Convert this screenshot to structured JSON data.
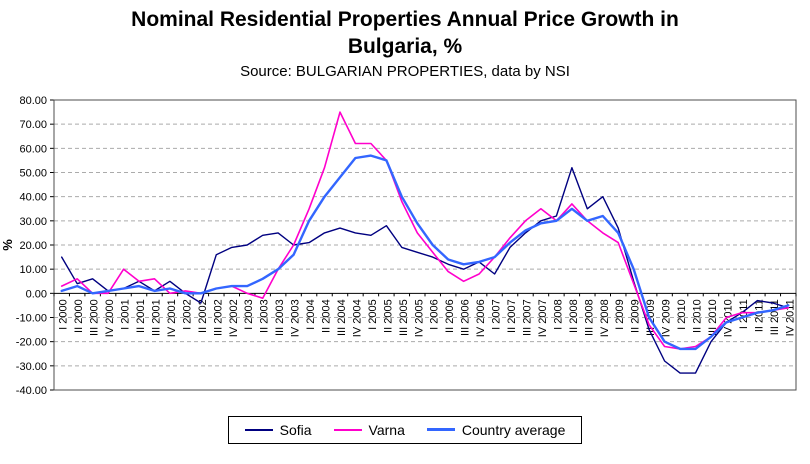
{
  "title": "Nominal Residential Properties Annual Price Growth in Bulgaria, %",
  "subtitle": "Source: BULGARIAN PROPERTIES, data by NSI",
  "chart_data": {
    "type": "line",
    "title": "Nominal Residential Properties Annual Price Growth in Bulgaria, %",
    "subtitle": "Source: BULGARIAN PROPERTIES, data by NSI",
    "xlabel": "",
    "ylabel": "%",
    "ylim": [
      -40,
      80
    ],
    "y_ticks": [
      80,
      70,
      60,
      50,
      40,
      30,
      20,
      10,
      0,
      -10,
      -20,
      -30,
      -40
    ],
    "grid": "horizontal-dashed-gray",
    "legend_position": "bottom-center",
    "categories": [
      "I 2000",
      "II 2000",
      "III 2000",
      "IV 2000",
      "I 2001",
      "II 2001",
      "III 2001",
      "IV 2001",
      "I 2002",
      "II 2002",
      "III 2002",
      "IV 2002",
      "I 2003",
      "II 2003",
      "III 2003",
      "IV 2003",
      "I 2004",
      "II 2004",
      "III 2004",
      "IV 2004",
      "I 2005",
      "II 2005",
      "III 2005",
      "IV 2005",
      "I 2006",
      "II 2006",
      "III 2006",
      "IV 2006",
      "I 2007",
      "II 2007",
      "III 2007",
      "IV 2007",
      "I 2008",
      "II 2008",
      "III 2008",
      "IV 2008",
      "I 2009",
      "II 2009",
      "III 2009",
      "IV 2009",
      "I 2010",
      "II 2010",
      "III 2010",
      "IV 2010",
      "I 2011",
      "II 2011",
      "III 2011",
      "IV 2011"
    ],
    "series": [
      {
        "name": "Sofia",
        "color": "#000080",
        "values": [
          15,
          4,
          6,
          1,
          2,
          5,
          1,
          5,
          0,
          -4,
          16,
          19,
          20,
          24,
          25,
          20,
          21,
          25,
          27,
          25,
          24,
          28,
          19,
          17,
          15,
          12,
          10,
          13,
          8,
          19,
          25,
          30,
          32,
          52,
          35,
          40,
          27,
          5,
          -15,
          -28,
          -33,
          -33,
          -20,
          -12,
          -8,
          -3,
          -4,
          -6
        ]
      },
      {
        "name": "Varna",
        "color": "#FF00CC",
        "values": [
          3,
          6,
          0,
          0,
          10,
          5,
          6,
          0,
          1,
          0,
          2,
          3,
          0,
          -2,
          10,
          20,
          35,
          52,
          75,
          62,
          62,
          55,
          38,
          25,
          17,
          9,
          5,
          8,
          15,
          23,
          30,
          35,
          30,
          37,
          30,
          25,
          21,
          4,
          -13,
          -22,
          -23,
          -22,
          -18,
          -10,
          -8,
          -8,
          -7,
          -6
        ]
      },
      {
        "name": "Country average",
        "color": "#3366FF",
        "values": [
          1,
          3,
          0,
          1,
          2,
          3,
          1,
          2,
          0,
          0,
          2,
          3,
          3,
          6,
          10,
          16,
          30,
          40,
          48,
          56,
          57,
          55,
          40,
          29,
          20,
          14,
          12,
          13,
          15,
          21,
          26,
          29,
          30,
          35,
          30,
          32,
          25,
          10,
          -10,
          -20,
          -23,
          -23,
          -18,
          -12,
          -10,
          -8,
          -7,
          -5
        ]
      }
    ]
  }
}
